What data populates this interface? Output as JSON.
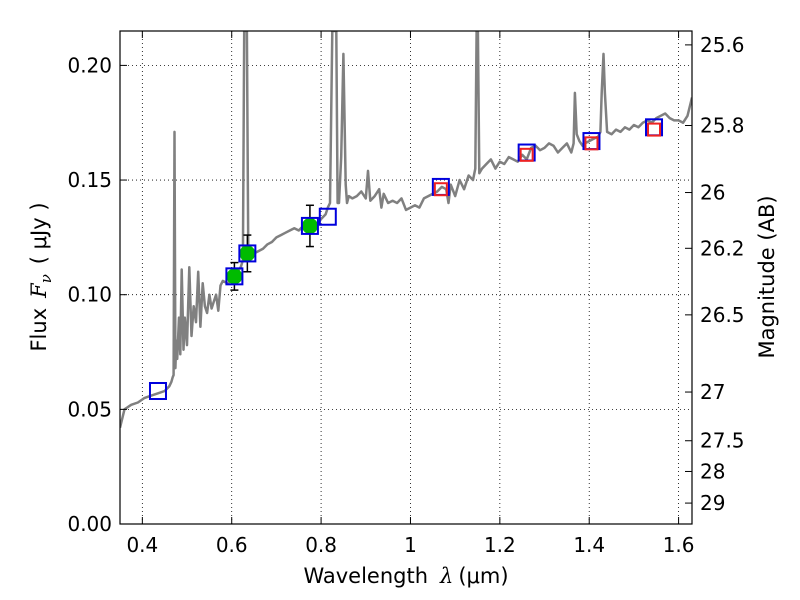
{
  "chart_data": {
    "type": "scatter",
    "xlabel": {
      "prefix": "Wavelength",
      "symbol": "λ",
      "unit": "(μm)"
    },
    "ylabel": {
      "prefix": "Flux",
      "symbol": "F",
      "subscript": "ν",
      "unit": "( μJy )"
    },
    "y2label": "Magnitude (AB)",
    "xlim": [
      0.35,
      1.63
    ],
    "ylim": [
      0.0,
      0.215
    ],
    "grid": true,
    "x_ticks": [
      {
        "value": 0.4,
        "label": "0.4"
      },
      {
        "value": 0.6,
        "label": "0.6"
      },
      {
        "value": 0.8,
        "label": "0.8"
      },
      {
        "value": 1.0,
        "label": "1"
      },
      {
        "value": 1.2,
        "label": "1.2"
      },
      {
        "value": 1.4,
        "label": "1.4"
      },
      {
        "value": 1.6,
        "label": "1.6"
      }
    ],
    "y_ticks": [
      {
        "value": 0.0,
        "label": "0.00"
      },
      {
        "value": 0.05,
        "label": "0.05"
      },
      {
        "value": 0.1,
        "label": "0.10"
      },
      {
        "value": 0.15,
        "label": "0.15"
      },
      {
        "value": 0.2,
        "label": "0.20"
      }
    ],
    "y2_ticks": [
      {
        "value": 25.6,
        "label": "25.6"
      },
      {
        "value": 25.8,
        "label": "25.8"
      },
      {
        "value": 26.0,
        "label": "26"
      },
      {
        "value": 26.2,
        "label": "26.2"
      },
      {
        "value": 26.5,
        "label": "26.5"
      },
      {
        "value": 27.0,
        "label": "27"
      },
      {
        "value": 27.5,
        "label": "27.5"
      },
      {
        "value": 28.0,
        "label": "28"
      },
      {
        "value": 29.0,
        "label": "29"
      }
    ],
    "series": [
      {
        "kind": "line",
        "color": "#808080",
        "x": [
          0.35,
          0.36,
          0.375,
          0.39,
          0.405,
          0.42,
          0.435,
          0.45,
          0.46,
          0.465,
          0.468,
          0.47,
          0.472,
          0.474,
          0.476,
          0.478,
          0.482,
          0.485,
          0.488,
          0.492,
          0.495,
          0.5,
          0.505,
          0.51,
          0.515,
          0.52,
          0.525,
          0.53,
          0.535,
          0.54,
          0.545,
          0.55,
          0.555,
          0.56,
          0.565,
          0.57,
          0.575,
          0.58,
          0.59,
          0.6,
          0.61,
          0.62,
          0.625,
          0.628,
          0.631,
          0.634,
          0.637,
          0.64,
          0.645,
          0.65,
          0.66,
          0.67,
          0.68,
          0.69,
          0.7,
          0.71,
          0.72,
          0.73,
          0.74,
          0.75,
          0.76,
          0.77,
          0.78,
          0.79,
          0.8,
          0.81,
          0.815,
          0.82,
          0.825,
          0.828,
          0.831,
          0.834,
          0.837,
          0.84,
          0.845,
          0.85,
          0.855,
          0.858,
          0.862,
          0.87,
          0.88,
          0.89,
          0.9,
          0.905,
          0.91,
          0.92,
          0.93,
          0.935,
          0.94,
          0.95,
          0.96,
          0.97,
          0.98,
          0.99,
          1.0,
          1.01,
          1.02,
          1.03,
          1.04,
          1.05,
          1.06,
          1.07,
          1.08,
          1.085,
          1.09,
          1.1,
          1.11,
          1.12,
          1.13,
          1.14,
          1.145,
          1.148,
          1.151,
          1.154,
          1.16,
          1.17,
          1.18,
          1.19,
          1.2,
          1.21,
          1.22,
          1.23,
          1.24,
          1.25,
          1.26,
          1.27,
          1.28,
          1.29,
          1.3,
          1.31,
          1.32,
          1.33,
          1.34,
          1.35,
          1.36,
          1.365,
          1.368,
          1.372,
          1.378,
          1.385,
          1.39,
          1.4,
          1.41,
          1.42,
          1.425,
          1.428,
          1.432,
          1.435,
          1.44,
          1.45,
          1.46,
          1.47,
          1.48,
          1.49,
          1.5,
          1.51,
          1.52,
          1.53,
          1.54,
          1.55,
          1.56,
          1.57,
          1.58,
          1.59,
          1.6,
          1.61,
          1.62,
          1.63
        ],
        "y": [
          0.042,
          0.05,
          0.052,
          0.053,
          0.055,
          0.056,
          0.057,
          0.058,
          0.06,
          0.062,
          0.064,
          0.065,
          0.171,
          0.068,
          0.08,
          0.072,
          0.09,
          0.074,
          0.111,
          0.076,
          0.09,
          0.078,
          0.112,
          0.082,
          0.095,
          0.088,
          0.11,
          0.086,
          0.105,
          0.095,
          0.092,
          0.1,
          0.094,
          0.097,
          0.1,
          0.093,
          0.104,
          0.106,
          0.105,
          0.106,
          0.109,
          0.112,
          0.115,
          0.215,
          0.215,
          0.215,
          0.116,
          0.117,
          0.116,
          0.118,
          0.119,
          0.12,
          0.122,
          0.123,
          0.125,
          0.126,
          0.127,
          0.128,
          0.129,
          0.128,
          0.13,
          0.129,
          0.132,
          0.13,
          0.133,
          0.135,
          0.138,
          0.14,
          0.215,
          0.215,
          0.215,
          0.215,
          0.14,
          0.14,
          0.16,
          0.205,
          0.148,
          0.14,
          0.143,
          0.142,
          0.143,
          0.145,
          0.142,
          0.154,
          0.141,
          0.143,
          0.146,
          0.138,
          0.144,
          0.14,
          0.141,
          0.14,
          0.142,
          0.137,
          0.138,
          0.139,
          0.138,
          0.142,
          0.143,
          0.144,
          0.145,
          0.147,
          0.146,
          0.14,
          0.148,
          0.143,
          0.15,
          0.146,
          0.152,
          0.15,
          0.155,
          0.215,
          0.215,
          0.153,
          0.155,
          0.157,
          0.159,
          0.155,
          0.158,
          0.157,
          0.16,
          0.159,
          0.158,
          0.161,
          0.159,
          0.164,
          0.165,
          0.163,
          0.164,
          0.166,
          0.165,
          0.162,
          0.164,
          0.166,
          0.162,
          0.166,
          0.188,
          0.17,
          0.167,
          0.165,
          0.166,
          0.167,
          0.168,
          0.169,
          0.171,
          0.188,
          0.205,
          0.188,
          0.171,
          0.17,
          0.172,
          0.171,
          0.173,
          0.172,
          0.174,
          0.173,
          0.175,
          0.176,
          0.175,
          0.177,
          0.178,
          0.179,
          0.177,
          0.176,
          0.176,
          0.175,
          0.178,
          0.186
        ]
      },
      {
        "kind": "markers",
        "marker": "circle",
        "color": "#00bb00",
        "x": [
          0.606,
          0.635,
          0.775
        ],
        "y": [
          0.108,
          0.118,
          0.13
        ],
        "yerr": [
          0.006,
          0.008,
          0.009
        ]
      },
      {
        "kind": "markers",
        "marker": "square",
        "color": "#0000dd",
        "x": [
          0.435,
          0.606,
          0.635,
          0.775,
          0.815,
          1.068,
          1.26,
          1.405,
          1.545
        ],
        "y": [
          0.058,
          0.108,
          0.118,
          0.13,
          0.134,
          0.147,
          0.162,
          0.167,
          0.173
        ]
      },
      {
        "kind": "markers",
        "marker": "square",
        "color": "#ee2222",
        "x": [
          1.068,
          1.26,
          1.405,
          1.545
        ],
        "y": [
          0.146,
          0.161,
          0.166,
          0.172
        ]
      }
    ]
  }
}
